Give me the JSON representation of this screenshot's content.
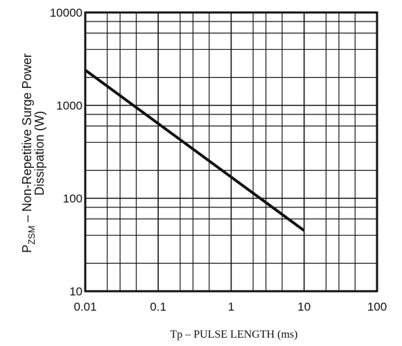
{
  "chart_data": {
    "type": "line",
    "x_scale": "log",
    "y_scale": "log",
    "xlim": [
      0.01,
      100
    ],
    "ylim": [
      10,
      10000
    ],
    "x_ticks": [
      "0.01",
      "0.1",
      "1",
      "10",
      "100"
    ],
    "y_ticks": [
      "10",
      "100",
      "1000",
      "10000"
    ],
    "xlabel": "Tp – PULSE LENGTH (ms)",
    "ylabel_line1_main": "P",
    "ylabel_line1_sub": "ZSM",
    "ylabel_line1_rest": " – Non-Repetitive Surge Power",
    "ylabel_line2": "Dissipation (W)",
    "grid": true,
    "series": [
      {
        "x": [
          0.01,
          10
        ],
        "y": [
          2400,
          45
        ]
      }
    ]
  }
}
